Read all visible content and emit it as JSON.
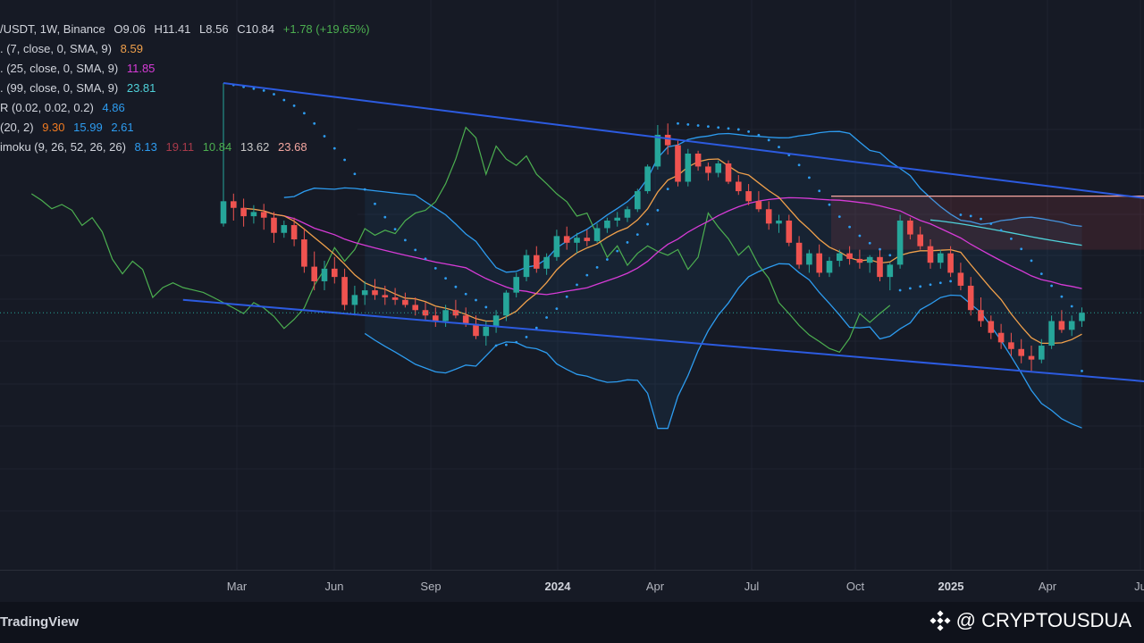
{
  "legend": {
    "row1": {
      "symbol": "/USDT, 1W, Binance",
      "open": "O9.06",
      "high": "H11.41",
      "low": "L8.56",
      "close": "C10.84",
      "change": "+1.78 (+19.65%)"
    },
    "ma7": {
      "label": ". (7, close, 0, SMA, 9)",
      "value": "8.59",
      "color": "#f0a04b"
    },
    "ma25": {
      "label": ". (25, close, 0, SMA, 9)",
      "value": "11.85",
      "color": "#d63bd6"
    },
    "ma99": {
      "label": ". (99, close, 0, SMA, 9)",
      "value": "23.81",
      "color": "#4fd1d9"
    },
    "sar": {
      "label": "R (0.02, 0.02, 0.2)",
      "value": "4.86",
      "color": "#2d9cf0"
    },
    "bb": {
      "label": "(20, 2)",
      "v1": "9.30",
      "v2": "15.99",
      "v3": "2.61",
      "c1": "#f07a20",
      "c2": "#2d9cf0",
      "c3": "#2d9cf0"
    },
    "ichimoku": {
      "label": "imoku (9, 26, 52, 26, 26)",
      "v1": "8.13",
      "v2": "19.11",
      "v3": "10.84",
      "v4": "13.62",
      "v5": "23.68",
      "c1": "#2d9cf0",
      "c2": "#a83a4a",
      "c3": "#4caf50",
      "c4": "#c8c8c8",
      "c5": "#f4a6a0"
    }
  },
  "time_axis": {
    "ticks": [
      {
        "label": "Mar",
        "strong": false
      },
      {
        "label": "Jun",
        "strong": false
      },
      {
        "label": "Sep",
        "strong": false
      },
      {
        "label": "2024",
        "strong": true
      },
      {
        "label": "Apr",
        "strong": false
      },
      {
        "label": "Jul",
        "strong": false
      },
      {
        "label": "Oct",
        "strong": false
      },
      {
        "label": "2025",
        "strong": true
      },
      {
        "label": "Apr",
        "strong": false
      },
      {
        "label": "Ju",
        "strong": false
      }
    ]
  },
  "footer": {
    "brand": "TradingView",
    "watermark": "@ CRYPTOUSDUA"
  },
  "colors": {
    "up": "#26a69a",
    "down": "#ef5350",
    "trendline": "#2c5be0",
    "background": "#161a25"
  },
  "chart_data": {
    "type": "candlestick",
    "interval": "1W",
    "ylim": [
      2,
      28
    ],
    "start_week": "2023-02-20",
    "candles": [
      [
        10.2,
        25.5,
        10.0,
        11.8
      ],
      [
        11.8,
        12.4,
        10.4,
        11.3
      ],
      [
        11.3,
        12.0,
        10.0,
        10.7
      ],
      [
        10.7,
        11.5,
        10.2,
        11.0
      ],
      [
        11.0,
        11.6,
        9.8,
        10.6
      ],
      [
        10.6,
        11.0,
        9.0,
        9.6
      ],
      [
        9.6,
        10.4,
        9.3,
        10.1
      ],
      [
        10.1,
        10.6,
        8.8,
        9.2
      ],
      [
        9.2,
        9.9,
        7.4,
        7.7
      ],
      [
        7.7,
        8.5,
        6.6,
        7.0
      ],
      [
        7.0,
        8.0,
        6.6,
        7.6
      ],
      [
        7.6,
        8.2,
        6.9,
        7.2
      ],
      [
        7.2,
        7.6,
        5.8,
        6.0
      ],
      [
        6.0,
        6.8,
        5.6,
        6.4
      ],
      [
        6.4,
        7.0,
        6.0,
        6.6
      ],
      [
        6.6,
        7.1,
        6.2,
        6.4
      ],
      [
        6.4,
        6.8,
        6.0,
        6.3
      ],
      [
        6.3,
        6.7,
        6.0,
        6.2
      ],
      [
        6.2,
        6.5,
        5.9,
        6.0
      ],
      [
        6.0,
        6.3,
        5.6,
        5.8
      ],
      [
        5.8,
        6.1,
        5.4,
        5.6
      ],
      [
        5.6,
        5.9,
        5.2,
        5.4
      ],
      [
        5.4,
        6.0,
        5.2,
        5.8
      ],
      [
        5.8,
        6.2,
        5.5,
        5.6
      ],
      [
        5.6,
        5.9,
        5.2,
        5.3
      ],
      [
        5.3,
        5.6,
        4.8,
        4.9
      ],
      [
        4.9,
        5.4,
        4.6,
        5.2
      ],
      [
        5.2,
        5.8,
        5.0,
        5.6
      ],
      [
        5.6,
        6.6,
        5.4,
        6.5
      ],
      [
        6.5,
        7.4,
        6.3,
        7.2
      ],
      [
        7.2,
        8.6,
        7.0,
        8.3
      ],
      [
        8.3,
        8.8,
        7.4,
        7.6
      ],
      [
        7.6,
        8.4,
        7.3,
        8.2
      ],
      [
        8.2,
        9.8,
        8.0,
        9.4
      ],
      [
        9.4,
        10.0,
        8.6,
        9.0
      ],
      [
        9.0,
        9.6,
        8.4,
        9.3
      ],
      [
        9.3,
        9.8,
        8.8,
        9.1
      ],
      [
        9.1,
        10.2,
        9.0,
        9.9
      ],
      [
        9.9,
        10.6,
        9.6,
        10.4
      ],
      [
        10.4,
        11.0,
        10.0,
        10.6
      ],
      [
        10.6,
        11.4,
        10.3,
        11.2
      ],
      [
        11.2,
        12.8,
        11.0,
        12.6
      ],
      [
        12.6,
        15.0,
        12.4,
        14.8
      ],
      [
        14.8,
        19.4,
        14.5,
        18.2
      ],
      [
        18.2,
        19.6,
        16.0,
        17.0
      ],
      [
        17.0,
        17.5,
        13.0,
        13.4
      ],
      [
        13.4,
        16.6,
        13.0,
        16.1
      ],
      [
        16.1,
        16.4,
        14.4,
        14.8
      ],
      [
        14.8,
        15.2,
        13.5,
        14.2
      ],
      [
        14.2,
        15.4,
        13.8,
        15.1
      ],
      [
        15.1,
        15.4,
        13.2,
        13.4
      ],
      [
        13.4,
        14.0,
        12.3,
        12.6
      ],
      [
        12.6,
        13.2,
        11.5,
        11.8
      ],
      [
        11.8,
        12.6,
        11.0,
        11.2
      ],
      [
        11.2,
        11.8,
        9.8,
        10.2
      ],
      [
        10.2,
        10.8,
        9.6,
        10.4
      ],
      [
        10.4,
        10.8,
        8.8,
        9.0
      ],
      [
        9.0,
        9.4,
        7.6,
        7.8
      ],
      [
        7.8,
        8.6,
        7.4,
        8.4
      ],
      [
        8.4,
        8.9,
        7.2,
        7.4
      ],
      [
        7.4,
        8.2,
        7.2,
        8.0
      ],
      [
        8.0,
        8.6,
        7.7,
        8.4
      ],
      [
        8.4,
        8.8,
        7.8,
        8.1
      ],
      [
        8.1,
        8.6,
        7.6,
        7.9
      ],
      [
        7.9,
        8.3,
        7.4,
        8.2
      ],
      [
        8.2,
        8.6,
        7.0,
        7.2
      ],
      [
        7.2,
        7.9,
        6.6,
        7.8
      ],
      [
        7.8,
        10.8,
        7.6,
        10.4
      ],
      [
        10.4,
        10.6,
        9.2,
        9.5
      ],
      [
        9.5,
        10.0,
        8.6,
        8.8
      ],
      [
        8.8,
        9.2,
        7.6,
        7.9
      ],
      [
        7.9,
        8.6,
        7.6,
        8.4
      ],
      [
        8.4,
        8.8,
        7.2,
        7.4
      ],
      [
        7.4,
        7.9,
        6.6,
        6.8
      ],
      [
        6.8,
        7.2,
        5.6,
        5.8
      ],
      [
        5.8,
        6.3,
        5.2,
        5.4
      ],
      [
        5.4,
        5.6,
        4.8,
        5.0
      ],
      [
        5.0,
        5.3,
        4.5,
        4.7
      ],
      [
        4.7,
        5.0,
        4.3,
        4.5
      ],
      [
        4.5,
        4.8,
        4.1,
        4.3
      ],
      [
        4.3,
        4.6,
        3.9,
        4.2
      ],
      [
        4.2,
        4.8,
        4.1,
        4.6
      ],
      [
        4.6,
        5.6,
        4.5,
        5.4
      ],
      [
        5.4,
        5.8,
        5.0,
        5.1
      ],
      [
        5.1,
        5.6,
        4.9,
        5.4
      ],
      [
        5.4,
        5.9,
        5.2,
        5.7
      ]
    ],
    "trendlines": [
      {
        "from": [
          0,
          25.5
        ],
        "to": [
          109,
          10.4
        ]
      },
      {
        "from": [
          -4,
          6.2
        ],
        "to": [
          109,
          3.3
        ]
      }
    ],
    "kumo_flat_top": 12.2
  }
}
